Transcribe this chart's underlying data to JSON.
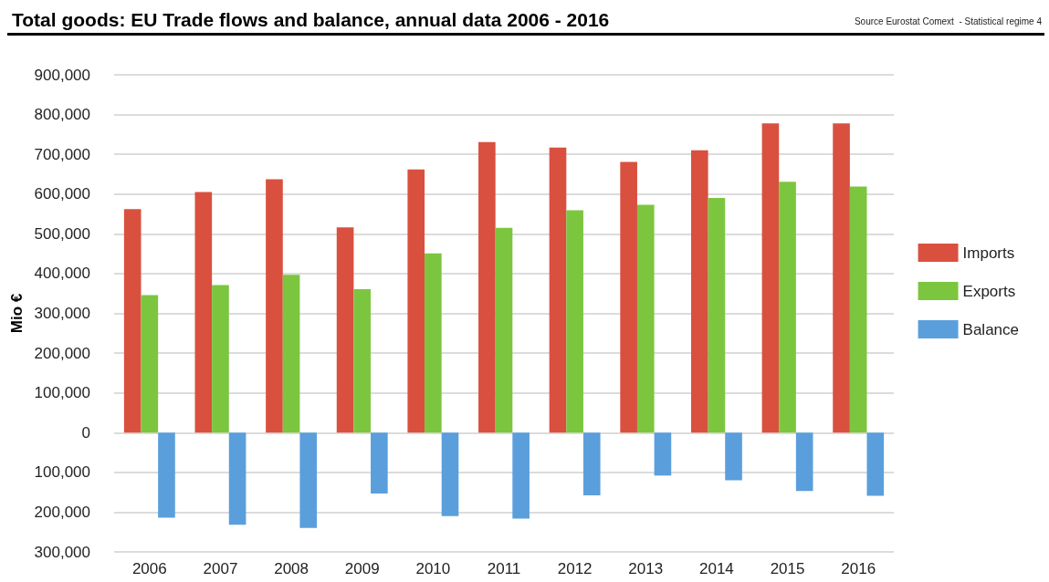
{
  "chart_data": {
    "type": "bar",
    "title": "Total goods: EU Trade flows and balance, annual data 2006 - 2016",
    "annotations": [
      "Source Eurostat Comext  - Statistical regime 4"
    ],
    "ylabel": "Mio €",
    "categories": [
      "2006",
      "2007",
      "2008",
      "2009",
      "2010",
      "2011",
      "2012",
      "2013",
      "2014",
      "2015",
      "2016"
    ],
    "series": [
      {
        "name": "Imports",
        "color": "#d9503f",
        "values": [
          562000,
          605000,
          637000,
          516000,
          662000,
          731000,
          717000,
          681000,
          710000,
          778000,
          778000
        ]
      },
      {
        "name": "Exports",
        "color": "#7cc63f",
        "values": [
          346000,
          371000,
          397000,
          361000,
          451000,
          515000,
          559000,
          573000,
          590000,
          631000,
          619000
        ]
      },
      {
        "name": "Balance",
        "color": "#5a9fdc",
        "values": [
          -214000,
          -232000,
          -240000,
          -153000,
          -210000,
          -216000,
          -158000,
          -108000,
          -120000,
          -147000,
          -159000
        ]
      }
    ],
    "ylim": [
      -300000,
      900000
    ],
    "yticks": [
      {
        "value": -300000,
        "label": "300,000"
      },
      {
        "value": -200000,
        "label": "200,000"
      },
      {
        "value": -100000,
        "label": "100,000"
      },
      {
        "value": 0,
        "label": "0"
      },
      {
        "value": 100000,
        "label": "100,000"
      },
      {
        "value": 200000,
        "label": "200,000"
      },
      {
        "value": 300000,
        "label": "300,000"
      },
      {
        "value": 400000,
        "label": "400,000"
      },
      {
        "value": 500000,
        "label": "500,000"
      },
      {
        "value": 600000,
        "label": "600,000"
      },
      {
        "value": 700000,
        "label": "700,000"
      },
      {
        "value": 800000,
        "label": "800,000"
      },
      {
        "value": 900000,
        "label": "900,000"
      }
    ],
    "grid": "y",
    "legend": "right"
  }
}
